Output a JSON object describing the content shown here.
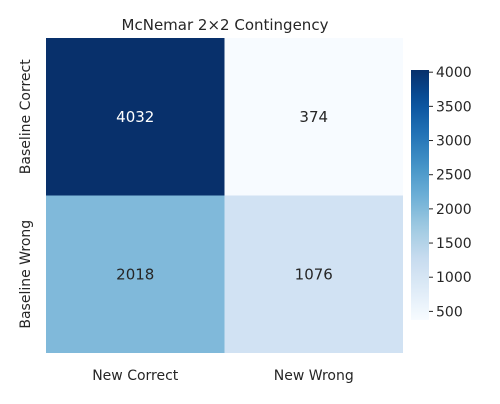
{
  "chart_data": {
    "type": "heatmap",
    "title": "McNemar 2×2 Contingency",
    "x_categories": [
      "New Correct",
      "New Wrong"
    ],
    "y_categories": [
      "Baseline Correct",
      "Baseline Wrong"
    ],
    "values": [
      [
        4032,
        374
      ],
      [
        2018,
        1076
      ]
    ],
    "colormap": "Blues",
    "colorbar": {
      "range": [
        374,
        4032
      ],
      "ticks": [
        500,
        1000,
        1500,
        2000,
        2500,
        3000,
        3500,
        4000
      ],
      "tick_labels": [
        "500",
        "1000",
        "1500",
        "2000",
        "2500",
        "3000",
        "3500",
        "4000"
      ],
      "placement": "right"
    },
    "grid": false
  }
}
